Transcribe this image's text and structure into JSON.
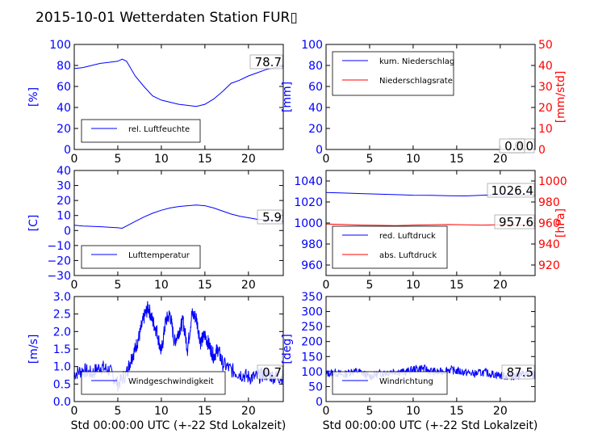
{
  "title": "2015-10-01 Wetterdaten Station FUR▯",
  "xlabel": "Std 00:00:00 UTC (+-22 Std Lokalzeit)",
  "colors": {
    "primary": "#0000ff",
    "secondary": "#ff0000",
    "wind_light": "#7777ff"
  },
  "chart_data": [
    {
      "id": "humidity",
      "type": "line",
      "ylabel": "[%]",
      "xlim": [
        0,
        24
      ],
      "ylim": [
        0,
        100
      ],
      "xticks": [
        "0",
        "5",
        "10",
        "15",
        "20"
      ],
      "yticks": [
        "0",
        "20",
        "40",
        "60",
        "80",
        "100"
      ],
      "legend": [
        "rel. Luftfeuchte"
      ],
      "legend_position": "lower-left",
      "annotation": "78.7",
      "series": [
        {
          "name": "rel. Luftfeuchte",
          "x": [
            0,
            1,
            2,
            3,
            4,
            5,
            5.5,
            6,
            7,
            8,
            9,
            10,
            11,
            12,
            13,
            14,
            15,
            16,
            17,
            18,
            19,
            20,
            21,
            22,
            23,
            24
          ],
          "y": [
            77,
            78,
            80,
            82,
            83,
            84,
            86,
            84,
            70,
            60,
            51,
            47,
            45,
            43,
            42,
            41,
            43,
            48,
            55,
            63,
            66,
            70,
            73,
            76,
            78,
            79
          ]
        }
      ]
    },
    {
      "id": "precipitation",
      "type": "line",
      "ylabel": "[mm]",
      "ylabel_right": "[mm/std]",
      "xlim": [
        0,
        24
      ],
      "ylim": [
        0,
        100
      ],
      "ylim_right": [
        0,
        50
      ],
      "xticks": [
        "0",
        "5",
        "10",
        "15",
        "20"
      ],
      "yticks": [
        "0",
        "20",
        "40",
        "60",
        "80",
        "100"
      ],
      "yticks_right": [
        "0",
        "10",
        "20",
        "30",
        "40",
        "50"
      ],
      "legend": [
        "kum. Niederschlag",
        "Niederschlagsrate"
      ],
      "legend_position": "upper-left",
      "annotation": "0.0",
      "annotation2": "0.0",
      "series": [
        {
          "name": "kum. Niederschlag",
          "x": [
            0,
            24
          ],
          "y": [
            0,
            0
          ]
        },
        {
          "name": "Niederschlagsrate",
          "x": [
            0,
            24
          ],
          "y": [
            0,
            0
          ]
        }
      ]
    },
    {
      "id": "temperature",
      "type": "line",
      "ylabel": "[C]",
      "xlim": [
        0,
        24
      ],
      "ylim": [
        -30,
        40
      ],
      "xticks": [
        "0",
        "5",
        "10",
        "15",
        "20"
      ],
      "yticks": [
        "−30",
        "−20",
        "−10",
        "0",
        "10",
        "20",
        "30",
        "40"
      ],
      "legend": [
        "Lufttemperatur"
      ],
      "legend_position": "lower-left",
      "annotation": "5.9",
      "series": [
        {
          "name": "Lufttemperatur",
          "x": [
            0,
            1,
            2,
            3,
            4,
            5,
            5.5,
            6,
            7,
            8,
            9,
            10,
            11,
            12,
            13,
            14,
            15,
            16,
            17,
            18,
            19,
            20,
            21,
            22,
            23,
            24
          ],
          "y": [
            3.5,
            3,
            2.8,
            2.5,
            2.2,
            1.8,
            1.5,
            3,
            6,
            9,
            11.5,
            13.5,
            15,
            16,
            16.5,
            17,
            16.5,
            15,
            13,
            11,
            9.5,
            8.5,
            7.5,
            7,
            6.5,
            5.9
          ]
        }
      ]
    },
    {
      "id": "pressure",
      "type": "line",
      "ylabel_right": "[hPa]",
      "xlim": [
        0,
        24
      ],
      "ylim": [
        950,
        1050
      ],
      "ylim_right": [
        910,
        1010
      ],
      "xticks": [
        "0",
        "5",
        "10",
        "15",
        "20"
      ],
      "yticks": [
        "960",
        "980",
        "1000",
        "1020",
        "1040"
      ],
      "yticks_right": [
        "920",
        "940",
        "960",
        "980",
        "1000"
      ],
      "legend": [
        "red. Luftdruck",
        "abs. Luftdruck"
      ],
      "legend_position": "lower-left",
      "annotation": "1026.4",
      "annotation2": "957.6",
      "series": [
        {
          "name": "red. Luftdruck",
          "x": [
            0,
            2,
            4,
            6,
            8,
            10,
            12,
            14,
            16,
            18,
            20,
            22,
            24
          ],
          "y": [
            1029,
            1028.5,
            1028,
            1027.5,
            1027,
            1026.5,
            1026.3,
            1026,
            1025.8,
            1026.5,
            1027,
            1026.8,
            1026.4
          ]
        },
        {
          "name": "abs. Luftdruck",
          "x": [
            0,
            2,
            4,
            6,
            8,
            10,
            12,
            14,
            16,
            18,
            20,
            22,
            24
          ],
          "y": [
            959,
            958.5,
            958,
            957.8,
            957.5,
            958,
            958.3,
            958.5,
            958.2,
            958,
            958.4,
            958,
            957.6
          ]
        }
      ]
    },
    {
      "id": "windspeed",
      "type": "line",
      "ylabel": "[m/s]",
      "xlim": [
        0,
        24
      ],
      "ylim": [
        0,
        3
      ],
      "xticks": [
        "0",
        "5",
        "10",
        "15",
        "20"
      ],
      "yticks": [
        "0.0",
        "0.5",
        "1.0",
        "1.5",
        "2.0",
        "2.5",
        "3.0"
      ],
      "legend": [
        "Windgeschwindigkeit"
      ],
      "legend_position": "lower-left",
      "annotation": "0.7",
      "series": [
        {
          "name": "Windgeschwindigkeit",
          "x": [
            0,
            1,
            2,
            3,
            4,
            5,
            6,
            6.5,
            7,
            7.5,
            8,
            8.5,
            9,
            9.5,
            10,
            10.5,
            11,
            11.5,
            12,
            12.5,
            13,
            13.5,
            14,
            14.5,
            15,
            15.5,
            16,
            16.5,
            17,
            18,
            19,
            20,
            21,
            22,
            23,
            24
          ],
          "y": [
            0.8,
            0.9,
            0.8,
            1.0,
            0.9,
            0.5,
            0.8,
            1.2,
            1.5,
            1.9,
            2.4,
            2.7,
            2.3,
            2.0,
            1.4,
            2.3,
            2.5,
            1.7,
            2.0,
            2.3,
            1.5,
            2.5,
            2.4,
            1.7,
            1.9,
            1.6,
            1.3,
            1.5,
            1.1,
            0.9,
            0.8,
            0.7,
            0.7,
            0.8,
            0.7,
            0.7
          ]
        }
      ]
    },
    {
      "id": "winddirection",
      "type": "line",
      "ylabel": "[deg]",
      "xlim": [
        0,
        24
      ],
      "ylim": [
        0,
        360
      ],
      "xticks": [
        "0",
        "5",
        "10",
        "15",
        "20"
      ],
      "yticks": [
        "0",
        "50",
        "100",
        "150",
        "200",
        "250",
        "300",
        "350"
      ],
      "legend": [
        "Windrichtung"
      ],
      "legend_position": "lower-left",
      "annotation": "87.5",
      "series": [
        {
          "name": "Windrichtung",
          "x": [
            0,
            1,
            2,
            3,
            4,
            5,
            6,
            7,
            8,
            9,
            10,
            11,
            12,
            13,
            14,
            15,
            16,
            17,
            18,
            19,
            20,
            21,
            22,
            23,
            24
          ],
          "y": [
            95,
            100,
            90,
            105,
            100,
            85,
            95,
            100,
            105,
            100,
            110,
            115,
            105,
            100,
            110,
            105,
            100,
            95,
            100,
            95,
            90,
            85,
            90,
            95,
            88
          ]
        }
      ]
    }
  ]
}
